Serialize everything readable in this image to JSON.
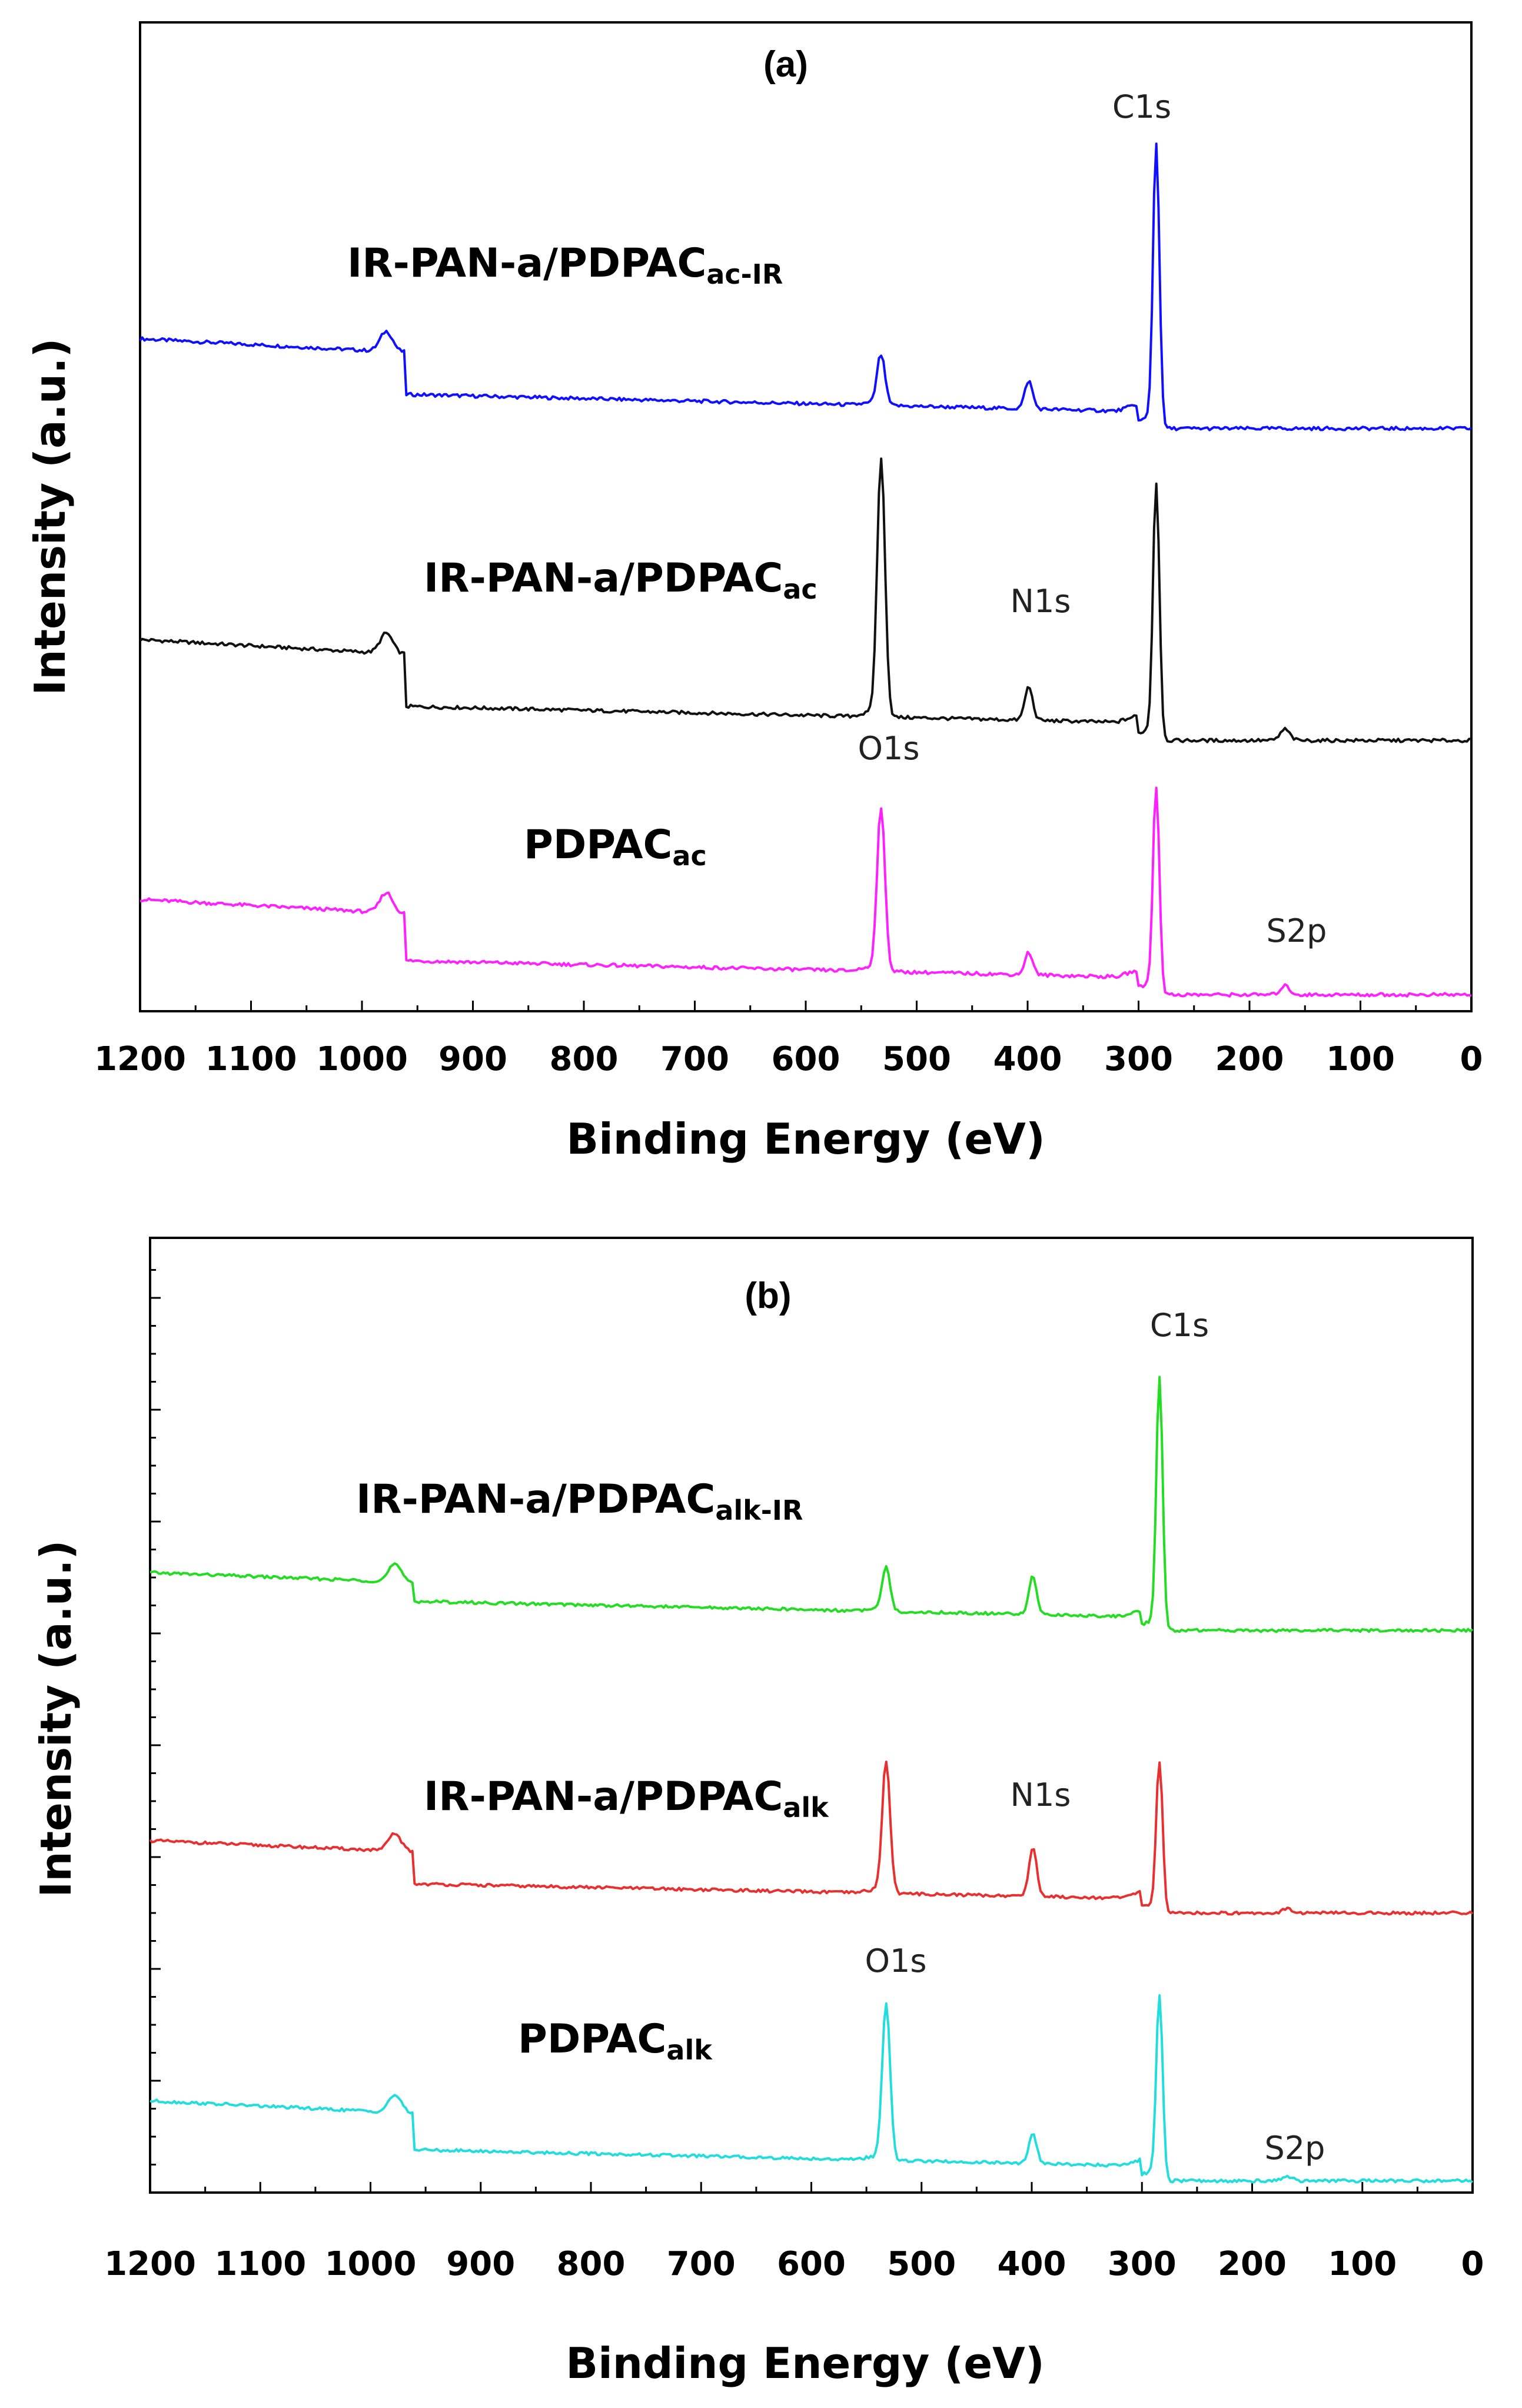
{
  "chart_data": [
    {
      "type": "line",
      "title": "(a)",
      "xlabel": "Binding Energy (eV)",
      "ylabel": "Intensity (a.u.)",
      "xlim": [
        1200,
        0
      ],
      "xticks": [
        "1200",
        "1100",
        "1000",
        "900",
        "800",
        "700",
        "600",
        "500",
        "400",
        "300",
        "200",
        "100",
        "0"
      ],
      "yticks_visible": false,
      "peak_labels": [
        {
          "text": "C1s",
          "x": 284
        },
        {
          "text": "N1s",
          "x": 399
        },
        {
          "text": "O1s",
          "x": 532
        },
        {
          "text": "S2p",
          "x": 168
        }
      ],
      "series": [
        {
          "name_main": "IR-PAN-a/PDPAC",
          "name_sub": "ac-IR",
          "color": "#1010ff",
          "offset": 2,
          "baseline_start": 0.72,
          "baseline_end": 0.0,
          "step_height": 0.55,
          "peaks": {
            "C1s": 2.55,
            "O1s": 0.45,
            "N1s": 0.25,
            "S2p": 0.0
          }
        },
        {
          "name_main": "IR-PAN-a/PDPAC",
          "name_sub": "ac",
          "color": "#111111",
          "offset": 1,
          "baseline_start": 0.72,
          "baseline_end": 0.0,
          "step_height": 0.65,
          "peaks": {
            "C1s": 2.3,
            "O1s": 2.3,
            "N1s": 0.3,
            "S2p": 0.1
          }
        },
        {
          "name_main": "PDPAC",
          "name_sub": "ac",
          "color": "#ff20ff",
          "offset": 0,
          "baseline_start": 0.72,
          "baseline_end": 0.0,
          "step_height": 0.6,
          "peaks": {
            "C1s": 1.85,
            "O1s": 1.45,
            "N1s": 0.2,
            "S2p": 0.08
          }
        }
      ]
    },
    {
      "type": "line",
      "title": "(b)",
      "xlabel": "Binding Energy (eV)",
      "ylabel": "Intensity (a.u.)",
      "xlim": [
        1200,
        0
      ],
      "xticks": [
        "1200",
        "1100",
        "1000",
        "900",
        "800",
        "700",
        "600",
        "500",
        "400",
        "300",
        "200",
        "100",
        "0"
      ],
      "yticks_visible": true,
      "peak_labels": [
        {
          "text": "C1s",
          "x": 284
        },
        {
          "text": "N1s",
          "x": 399
        },
        {
          "text": "O1s",
          "x": 532
        },
        {
          "text": "S2p",
          "x": 168
        }
      ],
      "series": [
        {
          "name_main": "IR-PAN-a/PDPAC",
          "name_sub": "alk-IR",
          "color": "#22dd22",
          "offset": 2,
          "baseline_start": 0.7,
          "baseline_end": 0.0,
          "step_height": 0.35,
          "peaks": {
            "C1s": 2.6,
            "O1s": 0.45,
            "N1s": 0.4,
            "S2p": 0.0
          }
        },
        {
          "name_main": "IR-PAN-a/PDPAC",
          "name_sub": "alk",
          "color": "#e83030",
          "offset": 1,
          "baseline_start": 0.7,
          "baseline_end": 0.0,
          "step_height": 0.5,
          "peaks": {
            "C1s": 1.55,
            "O1s": 1.35,
            "N1s": 0.5,
            "S2p": 0.05
          }
        },
        {
          "name_main": "PDPAC",
          "name_sub": "alk",
          "color": "#22dddd",
          "offset": 0,
          "baseline_start": 0.78,
          "baseline_end": 0.0,
          "step_height": 0.55,
          "peaks": {
            "C1s": 1.9,
            "O1s": 1.6,
            "N1s": 0.3,
            "S2p": 0.05
          }
        }
      ]
    }
  ]
}
